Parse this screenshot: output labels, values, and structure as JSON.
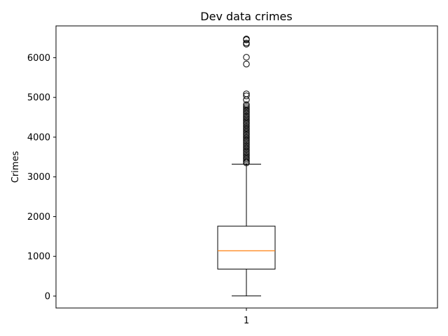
{
  "chart_data": {
    "type": "box",
    "title": "Dev data crimes",
    "xlabel": "",
    "ylabel": "Crimes",
    "categories": [
      "1"
    ],
    "ylim": [
      -300,
      6800
    ],
    "yticks": [
      0,
      1000,
      2000,
      3000,
      4000,
      5000,
      6000
    ],
    "ytick_labels": [
      "0",
      "1000",
      "2000",
      "3000",
      "4000",
      "5000",
      "6000"
    ],
    "grid": false,
    "box": {
      "category": "1",
      "whisker_low": 5,
      "q1": 680,
      "median": 1140,
      "q3": 1760,
      "whisker_high": 3320,
      "outliers": [
        3350,
        3380,
        3420,
        3460,
        3500,
        3540,
        3580,
        3620,
        3660,
        3700,
        3740,
        3780,
        3820,
        3860,
        3900,
        3940,
        3980,
        4020,
        4060,
        4100,
        4140,
        4180,
        4220,
        4260,
        4300,
        4340,
        4380,
        4420,
        4460,
        4500,
        4540,
        4580,
        4620,
        4660,
        4700,
        4740,
        4780,
        4820,
        4940,
        5040,
        5090,
        5840,
        6010,
        6340,
        6370,
        6450,
        6470
      ]
    },
    "colors": {
      "median": "#ff7f0e",
      "box": "#000000"
    }
  }
}
